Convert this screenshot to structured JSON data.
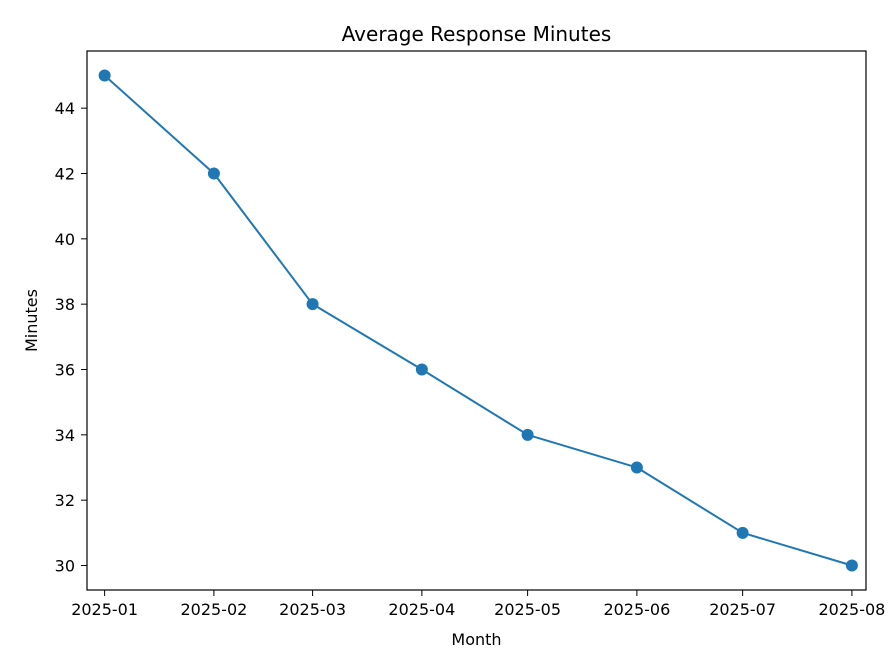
{
  "chart_data": {
    "type": "line",
    "title": "Average Response Minutes",
    "xlabel": "Month",
    "ylabel": "Minutes",
    "x": [
      "2025-01",
      "2025-02",
      "2025-03",
      "2025-04",
      "2025-05",
      "2025-06",
      "2025-07",
      "2025-08"
    ],
    "series": [
      {
        "values": [
          45,
          42,
          38,
          36,
          34,
          33,
          31,
          30
        ],
        "color": "#1f77b4",
        "marker": "circle"
      }
    ],
    "xlim": [
      "2024-12-27",
      "2025-08-05"
    ],
    "ylim": [
      29.25,
      45.75
    ],
    "yticks": [
      30,
      32,
      34,
      36,
      38,
      40,
      42,
      44
    ],
    "grid": false,
    "legend": "none"
  }
}
